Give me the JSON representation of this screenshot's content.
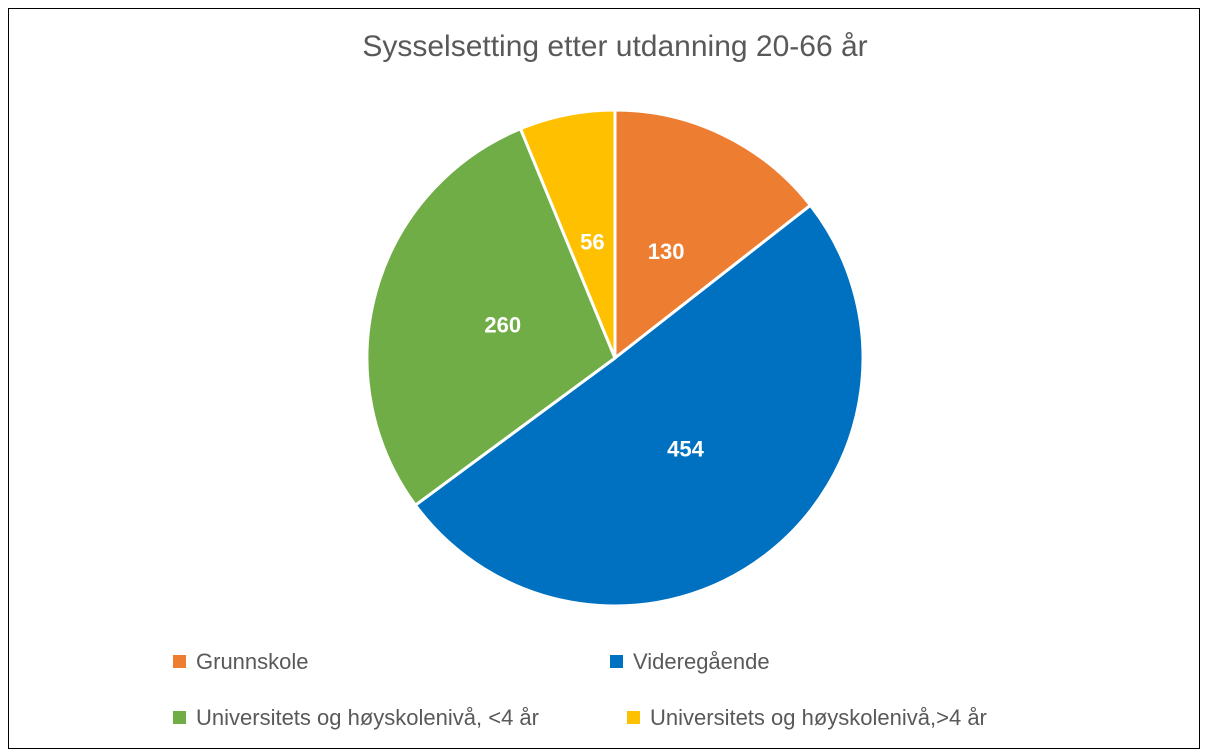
{
  "chart_data": {
    "type": "pie",
    "title": "Sysselsetting etter utdanning 20-66 år",
    "categories": [
      "Grunnskole",
      "Videregående",
      "Universitets og høyskolenivå, <4 år",
      "Universitets og høyskolenivå,>4 år"
    ],
    "values": [
      130,
      454,
      260,
      56
    ],
    "colors": [
      "#ED7D31",
      "#0070C0",
      "#70AD47",
      "#FFC000"
    ],
    "legend": "bottom"
  }
}
